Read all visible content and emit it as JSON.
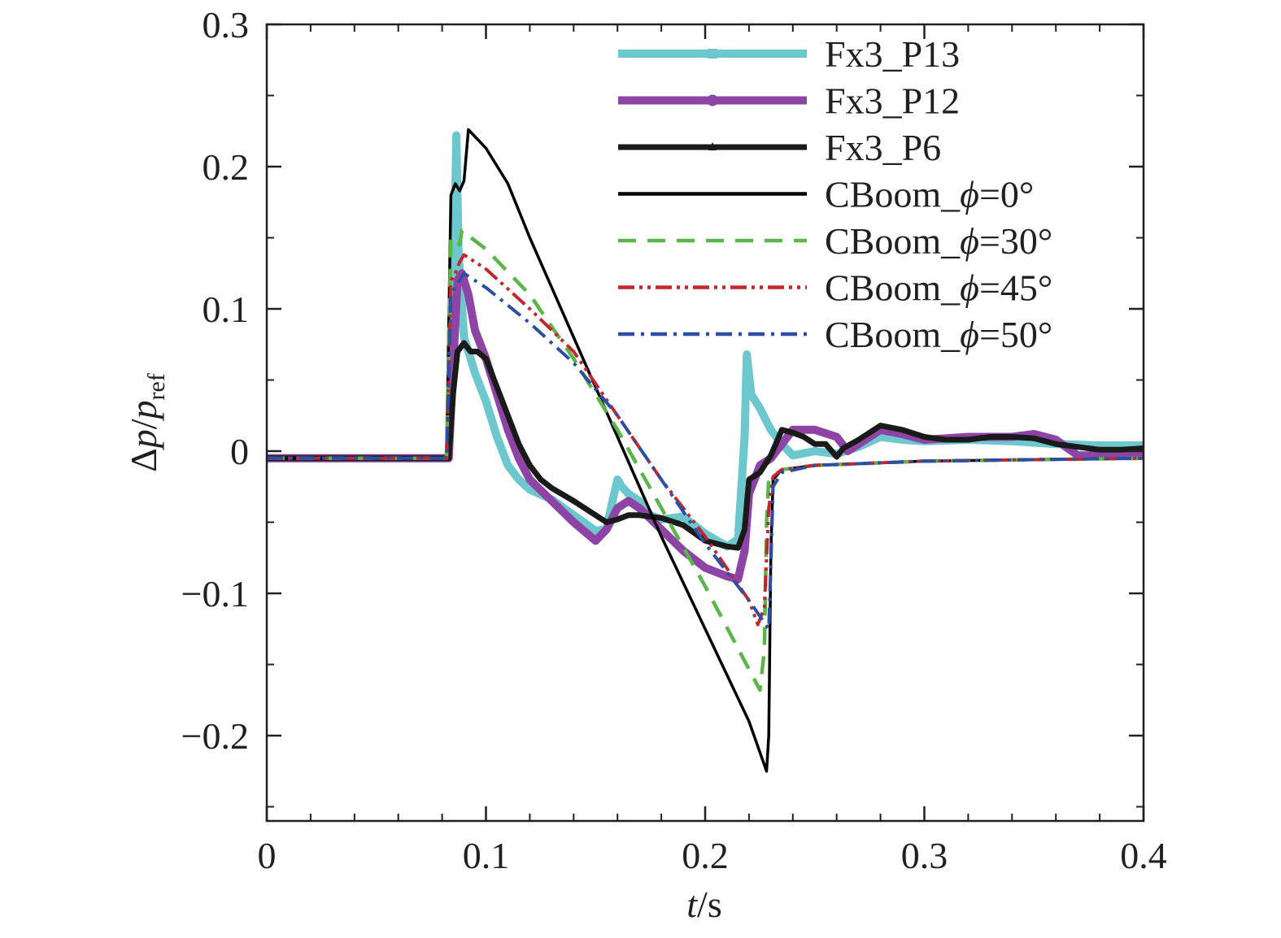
{
  "chart_data": {
    "type": "line",
    "title": "",
    "xlabel": {
      "italic": "t",
      "rest": "/s"
    },
    "ylabel": {
      "prefix": "Δ",
      "p": "p",
      "slash": "/",
      "p2": "p",
      "sub": "ref"
    },
    "xlim": [
      0,
      0.4
    ],
    "ylim": [
      -0.26,
      0.3
    ],
    "xticks": [
      0,
      0.1,
      0.2,
      0.3,
      0.4
    ],
    "xtick_labels": [
      "0",
      "0.1",
      "0.2",
      "0.3",
      "0.4"
    ],
    "yticks": [
      -0.2,
      -0.1,
      0,
      0.1,
      0.2,
      0.3
    ],
    "ytick_labels": [
      "−0.2",
      "−0.1",
      "0",
      "0.1",
      "0.2",
      "0.3"
    ],
    "grid": false,
    "legend_position": "top-right",
    "series": [
      {
        "name": "Fx3_P13",
        "legend_prefix": "Fx3_P13",
        "legend_phi": "",
        "legend_suffix": "",
        "color": "#6cc8cc",
        "style": "solid",
        "width": 10,
        "marker": "square",
        "points": [
          [
            0,
            -0.005
          ],
          [
            0.083,
            -0.005
          ],
          [
            0.085,
            0.1
          ],
          [
            0.0865,
            0.222
          ],
          [
            0.0875,
            0.14
          ],
          [
            0.09,
            0.08
          ],
          [
            0.095,
            0.055
          ],
          [
            0.1,
            0.035
          ],
          [
            0.105,
            0.01
          ],
          [
            0.11,
            -0.01
          ],
          [
            0.115,
            -0.02
          ],
          [
            0.12,
            -0.027
          ],
          [
            0.13,
            -0.034
          ],
          [
            0.14,
            -0.045
          ],
          [
            0.15,
            -0.056
          ],
          [
            0.155,
            -0.055
          ],
          [
            0.157,
            -0.04
          ],
          [
            0.16,
            -0.02
          ],
          [
            0.162,
            -0.025
          ],
          [
            0.165,
            -0.03
          ],
          [
            0.17,
            -0.035
          ],
          [
            0.175,
            -0.045
          ],
          [
            0.18,
            -0.048
          ],
          [
            0.19,
            -0.046
          ],
          [
            0.2,
            -0.058
          ],
          [
            0.21,
            -0.067
          ],
          [
            0.215,
            -0.062
          ],
          [
            0.218,
            0.01
          ],
          [
            0.219,
            0.068
          ],
          [
            0.221,
            0.04
          ],
          [
            0.225,
            0.03
          ],
          [
            0.23,
            0.015
          ],
          [
            0.235,
            0.005
          ],
          [
            0.24,
            -0.003
          ],
          [
            0.25,
            0.0
          ],
          [
            0.26,
            -0.002
          ],
          [
            0.27,
            0.003
          ],
          [
            0.28,
            0.01
          ],
          [
            0.29,
            0.008
          ],
          [
            0.3,
            0.007
          ],
          [
            0.32,
            0.008
          ],
          [
            0.34,
            0.007
          ],
          [
            0.36,
            0.005
          ],
          [
            0.38,
            0.004
          ],
          [
            0.4,
            0.004
          ]
        ]
      },
      {
        "name": "Fx3_P12",
        "legend_prefix": "Fx3_P12",
        "legend_phi": "",
        "legend_suffix": "",
        "color": "#8e44a5",
        "style": "solid",
        "width": 10,
        "marker": "circle",
        "points": [
          [
            0,
            -0.005
          ],
          [
            0.083,
            -0.005
          ],
          [
            0.085,
            0.06
          ],
          [
            0.087,
            0.12
          ],
          [
            0.089,
            0.125
          ],
          [
            0.092,
            0.11
          ],
          [
            0.095,
            0.085
          ],
          [
            0.1,
            0.065
          ],
          [
            0.105,
            0.04
          ],
          [
            0.11,
            0.015
          ],
          [
            0.115,
            -0.005
          ],
          [
            0.12,
            -0.02
          ],
          [
            0.13,
            -0.035
          ],
          [
            0.14,
            -0.05
          ],
          [
            0.15,
            -0.063
          ],
          [
            0.155,
            -0.055
          ],
          [
            0.16,
            -0.04
          ],
          [
            0.165,
            -0.035
          ],
          [
            0.17,
            -0.04
          ],
          [
            0.18,
            -0.055
          ],
          [
            0.19,
            -0.07
          ],
          [
            0.2,
            -0.082
          ],
          [
            0.21,
            -0.088
          ],
          [
            0.215,
            -0.09
          ],
          [
            0.218,
            -0.07
          ],
          [
            0.22,
            -0.03
          ],
          [
            0.225,
            -0.01
          ],
          [
            0.23,
            -0.005
          ],
          [
            0.24,
            0.015
          ],
          [
            0.25,
            0.015
          ],
          [
            0.26,
            0.01
          ],
          [
            0.265,
            0.0
          ],
          [
            0.27,
            0.005
          ],
          [
            0.28,
            0.015
          ],
          [
            0.29,
            0.012
          ],
          [
            0.3,
            0.008
          ],
          [
            0.32,
            0.01
          ],
          [
            0.34,
            0.01
          ],
          [
            0.35,
            0.012
          ],
          [
            0.36,
            0.008
          ],
          [
            0.37,
            -0.003
          ],
          [
            0.38,
            -0.003
          ],
          [
            0.4,
            -0.003
          ]
        ]
      },
      {
        "name": "Fx3_P6",
        "legend_prefix": "Fx3_P6",
        "legend_phi": "",
        "legend_suffix": "",
        "color": "#1a1a1a",
        "style": "solid",
        "width": 7,
        "marker": "triangle",
        "points": [
          [
            0,
            -0.005
          ],
          [
            0.083,
            -0.005
          ],
          [
            0.085,
            0.04
          ],
          [
            0.087,
            0.07
          ],
          [
            0.09,
            0.076
          ],
          [
            0.093,
            0.07
          ],
          [
            0.096,
            0.07
          ],
          [
            0.1,
            0.065
          ],
          [
            0.105,
            0.045
          ],
          [
            0.11,
            0.025
          ],
          [
            0.115,
            0.005
          ],
          [
            0.12,
            -0.01
          ],
          [
            0.125,
            -0.02
          ],
          [
            0.13,
            -0.026
          ],
          [
            0.14,
            -0.035
          ],
          [
            0.15,
            -0.045
          ],
          [
            0.155,
            -0.05
          ],
          [
            0.16,
            -0.048
          ],
          [
            0.165,
            -0.045
          ],
          [
            0.17,
            -0.045
          ],
          [
            0.18,
            -0.047
          ],
          [
            0.19,
            -0.052
          ],
          [
            0.2,
            -0.063
          ],
          [
            0.21,
            -0.067
          ],
          [
            0.215,
            -0.068
          ],
          [
            0.218,
            -0.055
          ],
          [
            0.22,
            -0.02
          ],
          [
            0.225,
            -0.015
          ],
          [
            0.23,
            -0.003
          ],
          [
            0.235,
            0.015
          ],
          [
            0.24,
            0.013
          ],
          [
            0.245,
            0.01
          ],
          [
            0.25,
            0.005
          ],
          [
            0.255,
            0.005
          ],
          [
            0.26,
            -0.004
          ],
          [
            0.263,
            0.002
          ],
          [
            0.27,
            0.008
          ],
          [
            0.28,
            0.018
          ],
          [
            0.29,
            0.015
          ],
          [
            0.3,
            0.01
          ],
          [
            0.31,
            0.008
          ],
          [
            0.32,
            0.008
          ],
          [
            0.33,
            0.01
          ],
          [
            0.34,
            0.01
          ],
          [
            0.35,
            0.009
          ],
          [
            0.36,
            0.005
          ],
          [
            0.37,
            0.003
          ],
          [
            0.38,
            0.001
          ],
          [
            0.39,
            0.001
          ],
          [
            0.4,
            0.002
          ]
        ]
      },
      {
        "name": "CBoom_ϕ=0°",
        "legend_prefix": "CBoom_",
        "legend_phi": "ϕ",
        "legend_suffix": "=0°",
        "color": "#000000",
        "style": "solid",
        "width": 3.5,
        "marker": "none",
        "points": [
          [
            0,
            -0.005
          ],
          [
            0.082,
            -0.005
          ],
          [
            0.084,
            0.18
          ],
          [
            0.086,
            0.188
          ],
          [
            0.088,
            0.183
          ],
          [
            0.09,
            0.19
          ],
          [
            0.092,
            0.226
          ],
          [
            0.1,
            0.213
          ],
          [
            0.11,
            0.188
          ],
          [
            0.12,
            0.15
          ],
          [
            0.14,
            0.08
          ],
          [
            0.16,
            0.01
          ],
          [
            0.18,
            -0.06
          ],
          [
            0.2,
            -0.125
          ],
          [
            0.22,
            -0.19
          ],
          [
            0.228,
            -0.225
          ],
          [
            0.229,
            -0.2
          ],
          [
            0.23,
            -0.07
          ],
          [
            0.231,
            -0.02
          ],
          [
            0.235,
            -0.013
          ],
          [
            0.25,
            -0.01
          ],
          [
            0.3,
            -0.007
          ],
          [
            0.35,
            -0.006
          ],
          [
            0.4,
            -0.005
          ]
        ]
      },
      {
        "name": "CBoom_ϕ=30°",
        "legend_prefix": "CBoom_",
        "legend_phi": "ϕ",
        "legend_suffix": "=30°",
        "color": "#5bb54b",
        "style": "dashed",
        "width": 4.5,
        "marker": "none",
        "points": [
          [
            0,
            -0.005
          ],
          [
            0.082,
            -0.005
          ],
          [
            0.084,
            0.15
          ],
          [
            0.086,
            0.15
          ],
          [
            0.088,
            0.145
          ],
          [
            0.089,
            0.155
          ],
          [
            0.1,
            0.142
          ],
          [
            0.12,
            0.11
          ],
          [
            0.14,
            0.065
          ],
          [
            0.16,
            0.015
          ],
          [
            0.18,
            -0.04
          ],
          [
            0.2,
            -0.095
          ],
          [
            0.225,
            -0.168
          ],
          [
            0.227,
            -0.14
          ],
          [
            0.228,
            -0.05
          ],
          [
            0.229,
            -0.02
          ],
          [
            0.235,
            -0.013
          ],
          [
            0.25,
            -0.01
          ],
          [
            0.3,
            -0.007
          ],
          [
            0.35,
            -0.006
          ],
          [
            0.4,
            -0.005
          ]
        ]
      },
      {
        "name": "CBoom_ϕ=45°",
        "legend_prefix": "CBoom_",
        "legend_phi": "ϕ",
        "legend_suffix": "=45°",
        "color": "#c0282d",
        "style": "dashdotdot",
        "width": 4,
        "marker": "none",
        "points": [
          [
            0,
            -0.005
          ],
          [
            0.082,
            -0.005
          ],
          [
            0.084,
            0.12
          ],
          [
            0.086,
            0.125
          ],
          [
            0.088,
            0.133
          ],
          [
            0.09,
            0.138
          ],
          [
            0.1,
            0.128
          ],
          [
            0.12,
            0.1
          ],
          [
            0.14,
            0.07
          ],
          [
            0.16,
            0.025
          ],
          [
            0.18,
            -0.02
          ],
          [
            0.2,
            -0.06
          ],
          [
            0.22,
            -0.105
          ],
          [
            0.224,
            -0.122
          ],
          [
            0.227,
            -0.11
          ],
          [
            0.229,
            -0.04
          ],
          [
            0.231,
            -0.018
          ],
          [
            0.235,
            -0.013
          ],
          [
            0.25,
            -0.01
          ],
          [
            0.3,
            -0.007
          ],
          [
            0.35,
            -0.006
          ],
          [
            0.4,
            -0.005
          ]
        ]
      },
      {
        "name": "CBoom_ϕ=50°",
        "legend_prefix": "CBoom_",
        "legend_phi": "ϕ",
        "legend_suffix": "=50°",
        "color": "#2c4ea3",
        "style": "dashdot",
        "width": 4,
        "marker": "none",
        "points": [
          [
            0,
            -0.005
          ],
          [
            0.082,
            -0.005
          ],
          [
            0.084,
            0.11
          ],
          [
            0.087,
            0.118
          ],
          [
            0.09,
            0.125
          ],
          [
            0.1,
            0.115
          ],
          [
            0.12,
            0.09
          ],
          [
            0.14,
            0.062
          ],
          [
            0.16,
            0.025
          ],
          [
            0.18,
            -0.02
          ],
          [
            0.2,
            -0.065
          ],
          [
            0.22,
            -0.105
          ],
          [
            0.229,
            -0.125
          ],
          [
            0.23,
            -0.08
          ],
          [
            0.231,
            -0.025
          ],
          [
            0.235,
            -0.015
          ],
          [
            0.25,
            -0.01
          ],
          [
            0.3,
            -0.007
          ],
          [
            0.35,
            -0.006
          ],
          [
            0.4,
            -0.005
          ]
        ]
      }
    ]
  }
}
